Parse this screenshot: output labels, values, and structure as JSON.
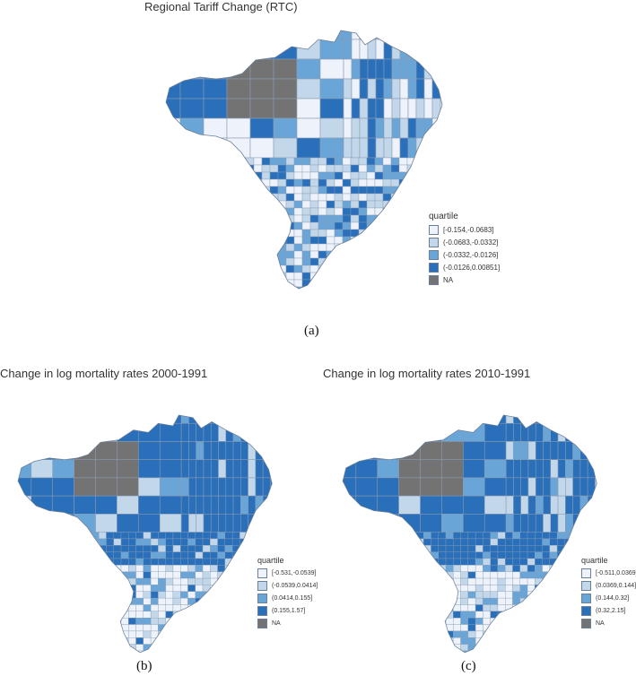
{
  "panels": [
    {
      "id": "a",
      "title": "Regional Tariff Change (RTC)",
      "caption": "(a)",
      "legend": {
        "title": "quartile",
        "items": [
          {
            "label": "[-0.154,-0.0683]",
            "color": "#eef3fb"
          },
          {
            "label": "(-0.0683,-0.0332]",
            "color": "#c2d7ea"
          },
          {
            "label": "(-0.0332,-0.0126]",
            "color": "#6aa5d8"
          },
          {
            "label": "(-0.0126,0.00851]",
            "color": "#2a6fb9"
          },
          {
            "label": "NA",
            "color": "#737373"
          }
        ]
      }
    },
    {
      "id": "b",
      "title": "Change in log mortality rates 2000-1991",
      "caption": "(b)",
      "legend": {
        "title": "quartile",
        "items": [
          {
            "label": "[-0.531,-0.0539]",
            "color": "#eef3fb"
          },
          {
            "label": "(-0.0539,0.0414]",
            "color": "#c2d7ea"
          },
          {
            "label": "(0.0414,0.155]",
            "color": "#6aa5d8"
          },
          {
            "label": "(0.155,1.57]",
            "color": "#2a6fb9"
          },
          {
            "label": "NA",
            "color": "#737373"
          }
        ]
      }
    },
    {
      "id": "c",
      "title": "Change in log mortality rates 2010-1991",
      "caption": "(c)",
      "legend": {
        "title": "quartile",
        "items": [
          {
            "label": "[-0.511,0.0369]",
            "color": "#eef3fb"
          },
          {
            "label": "(0.0369,0.144]",
            "color": "#c2d7ea"
          },
          {
            "label": "(0.144,0.32]",
            "color": "#6aa5d8"
          },
          {
            "label": "(0.32,2.15]",
            "color": "#2a6fb9"
          },
          {
            "label": "NA",
            "color": "#737373"
          }
        ]
      }
    }
  ]
}
